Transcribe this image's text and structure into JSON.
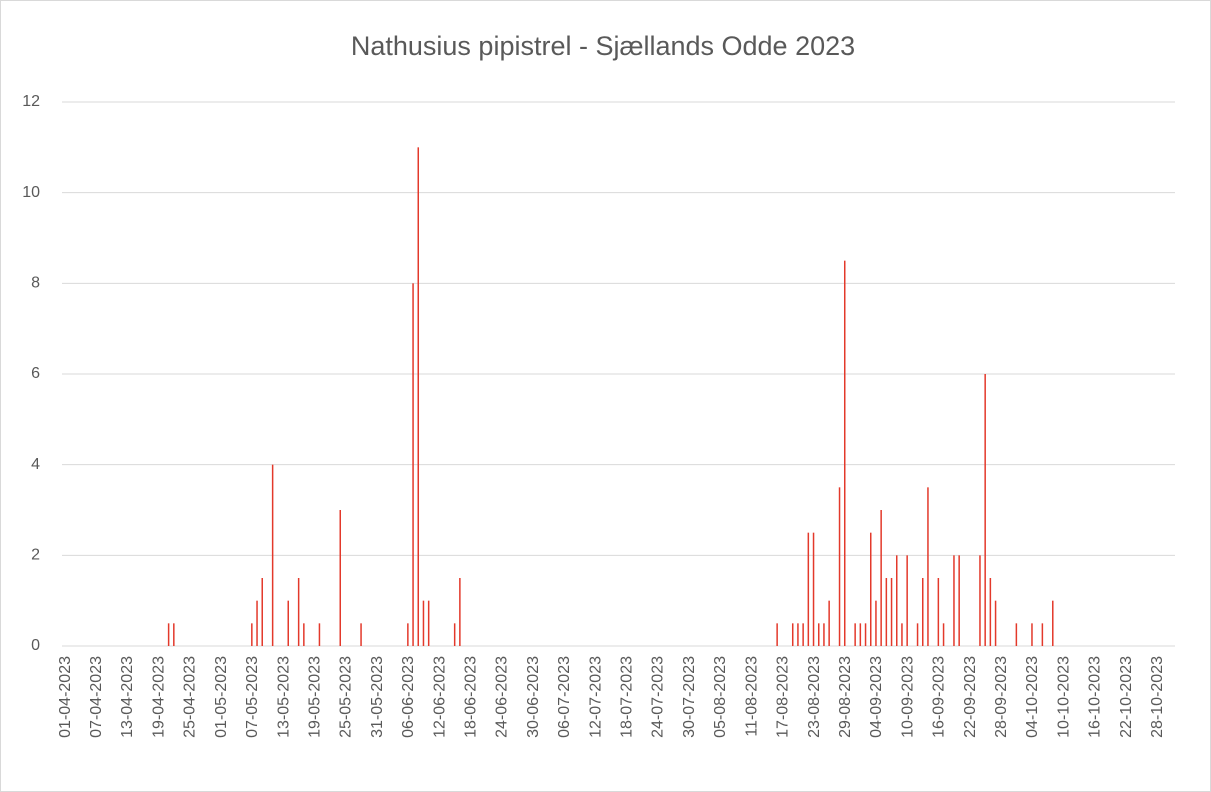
{
  "chart_data": {
    "type": "bar",
    "title": "Nathusius pipistrel - Sjællands Odde 2023",
    "categories": [
      "01-04-2023",
      null,
      null,
      null,
      null,
      null,
      "07-04-2023",
      null,
      null,
      null,
      null,
      null,
      "13-04-2023",
      null,
      null,
      null,
      null,
      null,
      "19-04-2023",
      null,
      null,
      null,
      null,
      null,
      "25-04-2023",
      null,
      null,
      null,
      null,
      null,
      "01-05-2023",
      null,
      null,
      null,
      null,
      null,
      "07-05-2023",
      null,
      null,
      null,
      null,
      null,
      "13-05-2023",
      null,
      null,
      null,
      null,
      null,
      "19-05-2023",
      null,
      null,
      null,
      null,
      null,
      "25-05-2023",
      null,
      null,
      null,
      null,
      null,
      "31-05-2023",
      null,
      null,
      null,
      null,
      null,
      "06-06-2023",
      null,
      null,
      null,
      null,
      null,
      "12-06-2023",
      null,
      null,
      null,
      null,
      null,
      "18-06-2023",
      null,
      null,
      null,
      null,
      null,
      "24-06-2023",
      null,
      null,
      null,
      null,
      null,
      "30-06-2023",
      null,
      null,
      null,
      null,
      null,
      "06-07-2023",
      null,
      null,
      null,
      null,
      null,
      "12-07-2023",
      null,
      null,
      null,
      null,
      null,
      "18-07-2023",
      null,
      null,
      null,
      null,
      null,
      "24-07-2023",
      null,
      null,
      null,
      null,
      null,
      "30-07-2023",
      null,
      null,
      null,
      null,
      null,
      "05-08-2023",
      null,
      null,
      null,
      null,
      null,
      "11-08-2023",
      null,
      null,
      null,
      null,
      null,
      "17-08-2023",
      null,
      null,
      null,
      null,
      null,
      "23-08-2023",
      null,
      null,
      null,
      null,
      null,
      "29-08-2023",
      null,
      null,
      null,
      null,
      null,
      "04-09-2023",
      null,
      null,
      null,
      null,
      null,
      "10-09-2023",
      null,
      null,
      null,
      null,
      null,
      "16-09-2023",
      null,
      null,
      null,
      null,
      null,
      "22-09-2023",
      null,
      null,
      null,
      null,
      null,
      "28-09-2023",
      null,
      null,
      null,
      null,
      null,
      "04-10-2023",
      null,
      null,
      null,
      null,
      null,
      "10-10-2023",
      null,
      null,
      null,
      null,
      null,
      "16-10-2023",
      null,
      null,
      null,
      null,
      null,
      "22-10-2023",
      null,
      null,
      null,
      null,
      null,
      "28-10-2023",
      null,
      null,
      null
    ],
    "values": [
      0,
      0,
      0,
      0,
      0,
      0,
      0,
      0,
      0,
      0,
      0,
      0,
      0,
      0,
      0,
      0,
      0,
      0,
      0,
      0,
      0.5,
      0.5,
      0,
      0,
      0,
      0,
      0,
      0,
      0,
      0,
      0,
      0,
      0,
      0,
      0,
      0,
      0.5,
      1,
      1.5,
      0,
      4,
      0,
      0,
      1,
      0,
      1.5,
      0.5,
      0,
      0,
      0.5,
      0,
      0,
      0,
      3,
      0,
      0,
      0,
      0.5,
      0,
      0,
      0,
      0,
      0,
      0,
      0,
      0,
      0.5,
      8,
      11,
      1,
      1,
      0,
      0,
      0,
      0,
      0.5,
      1.5,
      0,
      0,
      0,
      0,
      0,
      0,
      0,
      0,
      0,
      0,
      0,
      0,
      0,
      0,
      0,
      0,
      0,
      0,
      0,
      0,
      0,
      0,
      0,
      0,
      0,
      0,
      0,
      0,
      0,
      0,
      0,
      0,
      0,
      0,
      0,
      0,
      0,
      0,
      0,
      0,
      0,
      0,
      0,
      0,
      0,
      0,
      0,
      0,
      0,
      0,
      0,
      0,
      0,
      0,
      0,
      0,
      0,
      0,
      0,
      0,
      0.5,
      0,
      0,
      0.5,
      0.5,
      0.5,
      2.5,
      2.5,
      0.5,
      0.5,
      1,
      0,
      3.5,
      8.5,
      0,
      0.5,
      0.5,
      0.5,
      2.5,
      1,
      3,
      1.5,
      1.5,
      2,
      0.5,
      2,
      0,
      0.5,
      1.5,
      3.5,
      0,
      1.5,
      0.5,
      0,
      2,
      2,
      0,
      0,
      0,
      2,
      6,
      1.5,
      1,
      0,
      0,
      0,
      0.5,
      0,
      0,
      0.5,
      0,
      0.5,
      0,
      1,
      0,
      0,
      0,
      0,
      0,
      0,
      0,
      0,
      0,
      0,
      0,
      0,
      0,
      0,
      0,
      0,
      0,
      0,
      0,
      0,
      0,
      0,
      0
    ],
    "color": "#e3392b",
    "ylim": [
      0,
      12
    ],
    "yticks": [
      0,
      2,
      4,
      6,
      8,
      10,
      12
    ],
    "grid": true
  }
}
